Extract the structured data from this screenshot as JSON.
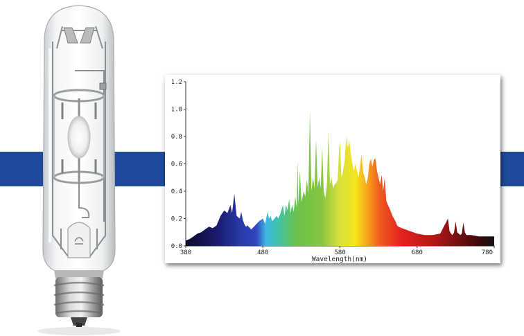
{
  "colors": {
    "band": "#1f4a9c",
    "axis": "#333333",
    "panel_bg": "#ffffff"
  },
  "lamp_icon": "metal-halide-lamp-icon",
  "chart_data": {
    "type": "area",
    "title": "",
    "xlabel": "Wavelength(nm)",
    "ylabel": "",
    "xlim": [
      380,
      780
    ],
    "ylim": [
      0,
      1.2
    ],
    "grid": false,
    "fill": "visible-spectrum gradient",
    "x_ticks": [
      380,
      480,
      580,
      680,
      780
    ],
    "x_tick_labels": [
      "380",
      "480",
      "580",
      "680",
      "780"
    ],
    "y_ticks": [
      0,
      0.2,
      0.4,
      0.6,
      0.8,
      1.0,
      1.2
    ],
    "y_tick_labels": [
      "0.0",
      "0.2",
      "0.4",
      "0.6",
      "0.8",
      "1.0",
      "1.2"
    ],
    "series": [
      {
        "x": [
          380,
          385,
          390,
          395,
          400,
          405,
          410,
          415,
          420,
          425,
          430,
          434,
          436,
          438,
          440,
          443,
          446,
          450,
          452,
          454,
          456,
          458,
          460,
          465,
          470,
          475,
          480,
          483,
          486,
          488,
          490,
          492,
          495,
          498,
          500,
          503,
          506,
          508,
          510,
          512,
          514,
          516,
          518,
          520,
          522,
          524,
          525,
          526,
          528,
          530,
          533,
          535,
          537,
          539,
          541,
          543,
          545,
          547,
          549,
          551,
          553,
          555,
          557,
          559,
          561,
          563,
          565,
          567,
          569,
          571,
          573,
          575,
          577,
          579,
          580,
          582,
          584,
          586,
          588,
          590,
          592,
          594,
          596,
          598,
          600,
          602,
          604,
          606,
          608,
          610,
          612,
          614,
          616,
          618,
          620,
          622,
          624,
          626,
          628,
          630,
          632,
          634,
          636,
          638,
          640,
          642,
          644,
          646,
          648,
          650,
          652,
          654,
          656,
          660,
          665,
          670,
          675,
          680,
          690,
          700,
          710,
          720,
          722,
          724,
          726,
          728,
          730,
          732,
          734,
          736,
          738,
          740,
          742,
          744,
          750,
          760,
          770,
          780
        ],
        "y": [
          0.04,
          0.05,
          0.07,
          0.09,
          0.1,
          0.12,
          0.14,
          0.13,
          0.15,
          0.22,
          0.26,
          0.24,
          0.27,
          0.3,
          0.24,
          0.38,
          0.22,
          0.2,
          0.25,
          0.19,
          0.16,
          0.14,
          0.15,
          0.12,
          0.15,
          0.18,
          0.2,
          0.16,
          0.25,
          0.2,
          0.22,
          0.18,
          0.2,
          0.22,
          0.2,
          0.24,
          0.3,
          0.22,
          0.3,
          0.26,
          0.34,
          0.24,
          0.3,
          0.25,
          0.36,
          0.28,
          0.62,
          0.3,
          0.55,
          0.32,
          0.4,
          0.36,
          0.48,
          0.38,
          0.99,
          0.4,
          0.5,
          0.42,
          0.78,
          0.43,
          0.5,
          0.42,
          0.72,
          0.4,
          0.35,
          0.44,
          0.83,
          0.45,
          0.5,
          0.42,
          0.45,
          0.46,
          0.48,
          0.72,
          0.76,
          0.5,
          0.55,
          0.62,
          0.8,
          0.72,
          0.77,
          0.68,
          0.6,
          0.55,
          0.6,
          0.55,
          0.5,
          0.58,
          0.67,
          0.54,
          0.5,
          0.45,
          0.5,
          0.6,
          0.64,
          0.58,
          0.63,
          0.64,
          0.55,
          0.5,
          0.45,
          0.52,
          0.4,
          0.5,
          0.33,
          0.3,
          0.28,
          0.25,
          0.22,
          0.2,
          0.18,
          0.15,
          0.14,
          0.13,
          0.12,
          0.11,
          0.1,
          0.09,
          0.08,
          0.08,
          0.09,
          0.2,
          0.11,
          0.09,
          0.08,
          0.1,
          0.18,
          0.1,
          0.09,
          0.08,
          0.09,
          0.17,
          0.1,
          0.08,
          0.08,
          0.07,
          0.07,
          0.07
        ]
      }
    ]
  }
}
